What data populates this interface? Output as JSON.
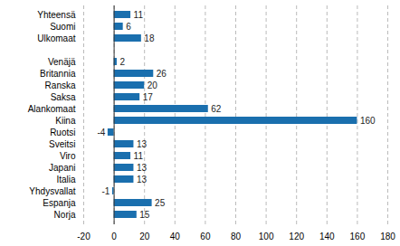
{
  "chart_data": {
    "type": "bar",
    "orientation": "horizontal",
    "categories": [
      "Yhteensä",
      "Suomi",
      "Ulkomaat",
      null,
      "Venäjä",
      "Britannia",
      "Ranska",
      "Saksa",
      "Alankomaat",
      "Kiina",
      "Ruotsi",
      "Sveitsi",
      "Viro",
      "Japani",
      "Italia",
      "Yhdysvallat",
      "Espanja",
      "Norja"
    ],
    "values": [
      11,
      6,
      18,
      null,
      2,
      26,
      20,
      17,
      62,
      160,
      -4,
      13,
      11,
      13,
      13,
      -1,
      25,
      15
    ],
    "color": "#1a6fae",
    "xlim": [
      -20,
      180
    ],
    "xticks": [
      -20,
      0,
      20,
      40,
      60,
      80,
      100,
      120,
      140,
      160,
      180
    ],
    "grid": true,
    "data_labels": true
  }
}
